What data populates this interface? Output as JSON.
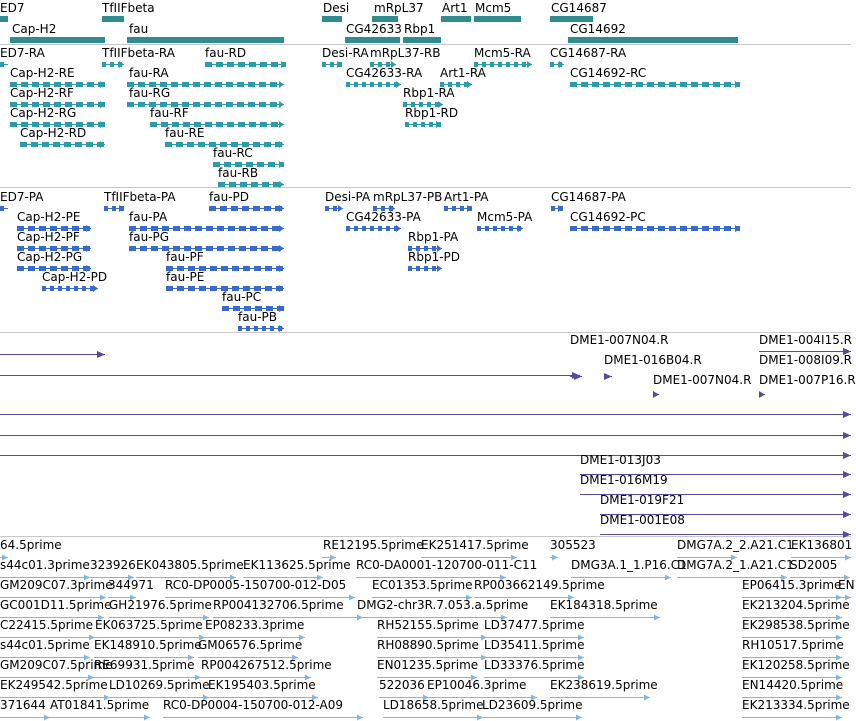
{
  "colors": {
    "gene": "#2f8c8f",
    "transcript": "#2f9ba8",
    "protein": "#3a6bc9",
    "clone": "#5a4a9e",
    "est": "#88b6db",
    "separator": "#c8c8c8"
  },
  "tracks": [
    {
      "name": "gene-track",
      "features": [
        {
          "label": "ED7"
        },
        {
          "label": "TfIIFbeta"
        },
        {
          "label": "Cap-H2"
        },
        {
          "label": "fau"
        },
        {
          "label": "Desi"
        },
        {
          "label": "mRpL37"
        },
        {
          "label": "Art1"
        },
        {
          "label": "Mcm5"
        },
        {
          "label": "CG14687"
        },
        {
          "label": "CG42633"
        },
        {
          "label": "Rbp1"
        },
        {
          "label": "CG14692"
        }
      ]
    },
    {
      "name": "transcript-track",
      "features": [
        {
          "label": "ED7-RA"
        },
        {
          "label": "TfIIFbeta-RA"
        },
        {
          "label": "fau-RD"
        },
        {
          "label": "Desi-RA"
        },
        {
          "label": "mRpL37-RB"
        },
        {
          "label": "Mcm5-RA"
        },
        {
          "label": "CG14687-RA"
        },
        {
          "label": "Cap-H2-RE"
        },
        {
          "label": "fau-RA"
        },
        {
          "label": "CG42633-RA"
        },
        {
          "label": "Art1-RA"
        },
        {
          "label": "CG14692-RC"
        },
        {
          "label": "Cap-H2-RF"
        },
        {
          "label": "fau-RG"
        },
        {
          "label": "Rbp1-RA"
        },
        {
          "label": "Cap-H2-RG"
        },
        {
          "label": "fau-RF"
        },
        {
          "label": "Rbp1-RD"
        },
        {
          "label": "Cap-H2-RD"
        },
        {
          "label": "fau-RE"
        },
        {
          "label": "fau-RC"
        },
        {
          "label": "fau-RB"
        }
      ]
    },
    {
      "name": "protein-track",
      "features": [
        {
          "label": "ED7-PA"
        },
        {
          "label": "TfIIFbeta-PA"
        },
        {
          "label": "fau-PD"
        },
        {
          "label": "Desi-PA"
        },
        {
          "label": "mRpL37-PB"
        },
        {
          "label": "Art1-PA"
        },
        {
          "label": "CG14687-PA"
        },
        {
          "label": "Cap-H2-PE"
        },
        {
          "label": "fau-PA"
        },
        {
          "label": "CG42633-PA"
        },
        {
          "label": "Mcm5-PA"
        },
        {
          "label": "CG14692-PC"
        },
        {
          "label": "Cap-H2-PF"
        },
        {
          "label": "fau-PG"
        },
        {
          "label": "Rbp1-PA"
        },
        {
          "label": "Cap-H2-PG"
        },
        {
          "label": "fau-PF"
        },
        {
          "label": "Rbp1-PD"
        },
        {
          "label": "Cap-H2-PD"
        },
        {
          "label": "fau-PE"
        },
        {
          "label": "fau-PC"
        },
        {
          "label": "fau-PB"
        }
      ]
    },
    {
      "name": "clone-track",
      "features": [
        {
          "label": ""
        },
        {
          "label": "DME1-007N04.R"
        },
        {
          "label": "DME1-004I15.R"
        },
        {
          "label": ""
        },
        {
          "label": "DME1-016B04.R"
        },
        {
          "label": "DME1-008I09.R"
        },
        {
          "label": "DME1-007N04.R"
        },
        {
          "label": "DME1-007P16.R"
        }
      ]
    },
    {
      "name": "clone-track-2",
      "features": [
        {
          "label": ""
        },
        {
          "label": ""
        },
        {
          "label": ""
        },
        {
          "label": "DME1-013J03"
        },
        {
          "label": "DME1-016M19"
        },
        {
          "label": "DME1-019F21"
        },
        {
          "label": "DME1-001E08"
        }
      ]
    },
    {
      "name": "est-track",
      "features": [
        {
          "label": "64.5prime"
        },
        {
          "label": "RE12195.5prime"
        },
        {
          "label": "EK251417.5prime"
        },
        {
          "label": "305523"
        },
        {
          "label": "DMG7A.2_2.A21.C1"
        },
        {
          "label": "EK136801"
        },
        {
          "label": "s44c01.3prime"
        },
        {
          "label": "323926"
        },
        {
          "label": "EK043805.5prime"
        },
        {
          "label": "EK113625.5prime"
        },
        {
          "label": "RC0-DA0001-120700-011-C11"
        },
        {
          "label": "DMG3A.1_1.P16.C1"
        },
        {
          "label": "DMG7A.2_1.A21.C1"
        },
        {
          "label": "SD2005"
        },
        {
          "label": "GM209C07.3prime"
        },
        {
          "label": "344971"
        },
        {
          "label": "RC0-DP0005-150700-012-D05"
        },
        {
          "label": "EC01353.5prime"
        },
        {
          "label": "RP003662149.5prime"
        },
        {
          "label": "EP06415.3prime"
        },
        {
          "label": "EN"
        },
        {
          "label": "GC001D11.5prime"
        },
        {
          "label": "GH21976.5prime"
        },
        {
          "label": "RP004132706.5prime"
        },
        {
          "label": "DMG2-chr3R.7.053.a.5prime"
        },
        {
          "label": "EK184318.5prime"
        },
        {
          "label": "EK213204.5prime"
        },
        {
          "label": "C22415.5prime"
        },
        {
          "label": "EK063725.5prime"
        },
        {
          "label": "EP08233.3prime"
        },
        {
          "label": "RH52155.5prime"
        },
        {
          "label": "LD37477.5prime"
        },
        {
          "label": "EK298538.5prime"
        },
        {
          "label": "s44c01.5prime"
        },
        {
          "label": "EK148910.5prime"
        },
        {
          "label": "GM06576.5prime"
        },
        {
          "label": "RH08890.5prime"
        },
        {
          "label": "LD35411.5prime"
        },
        {
          "label": "RH10517.5prime"
        },
        {
          "label": "GM209C07.5prime"
        },
        {
          "label": "RE69931.5prime"
        },
        {
          "label": "RP004267512.5prime"
        },
        {
          "label": "EN01235.5prime"
        },
        {
          "label": "LD33376.5prime"
        },
        {
          "label": "EK120258.5prime"
        },
        {
          "label": "EK249542.5prime"
        },
        {
          "label": "LD10269.5prime"
        },
        {
          "label": "EK195403.5prime"
        },
        {
          "label": "522036"
        },
        {
          "label": "EP10046.3prime"
        },
        {
          "label": "EK238619.5prime"
        },
        {
          "label": "EN14420.5prime"
        },
        {
          "label": "371644"
        },
        {
          "label": "AT01841.5prime"
        },
        {
          "label": "RC0-DP0004-150700-012-A09"
        },
        {
          "label": "LD18658.5prime"
        },
        {
          "label": "LD23609.5prime"
        },
        {
          "label": "EK213334.5prime"
        }
      ]
    }
  ]
}
